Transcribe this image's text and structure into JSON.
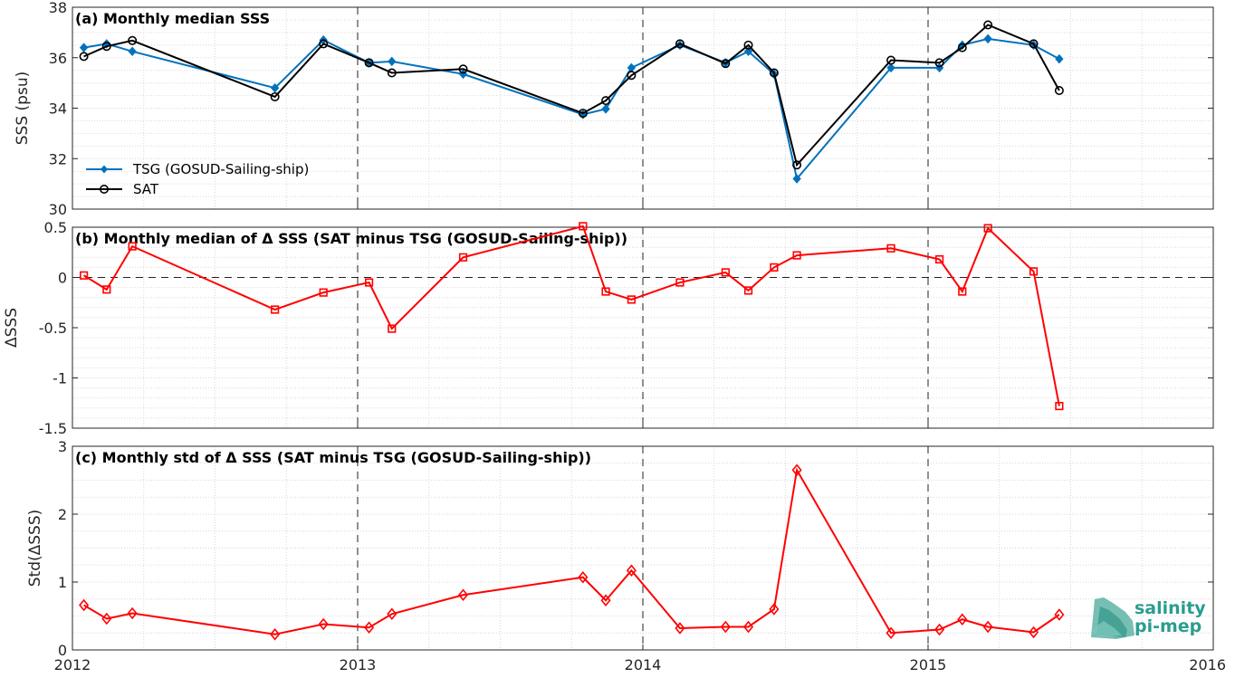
{
  "chart_data": [
    {
      "type": "line",
      "title": "(a) Monthly median SSS",
      "xlabel": "",
      "ylabel": "SSS (psu)",
      "xlim": [
        2012,
        2016
      ],
      "ylim": [
        30,
        38
      ],
      "yticks": [
        30,
        32,
        34,
        36,
        38
      ],
      "grid": true,
      "legend_position": "bottom-left",
      "x": [
        2012.04,
        2012.12,
        2012.21,
        2012.71,
        2012.88,
        2013.04,
        2013.12,
        2013.37,
        2013.79,
        2013.87,
        2013.96,
        2014.13,
        2014.29,
        2014.37,
        2014.46,
        2014.54,
        2014.87,
        2015.04,
        2015.12,
        2015.21,
        2015.37,
        2015.46
      ],
      "series": [
        {
          "name": "TSG (GOSUD-Sailing-ship)",
          "color": "#0072bd",
          "marker": "diamond-filled",
          "values": [
            36.4,
            36.55,
            36.25,
            34.8,
            36.7,
            35.8,
            35.85,
            35.35,
            33.75,
            33.97,
            35.6,
            36.5,
            35.8,
            36.25,
            35.35,
            31.2,
            35.6,
            35.6,
            36.5,
            36.75,
            36.5,
            35.95
          ]
        },
        {
          "name": "SAT",
          "color": "#000000",
          "marker": "circle-open",
          "values": [
            36.05,
            36.45,
            36.68,
            34.45,
            36.55,
            35.8,
            35.4,
            35.55,
            33.8,
            34.3,
            35.3,
            36.55,
            35.77,
            36.5,
            35.4,
            31.75,
            35.9,
            35.8,
            36.4,
            37.3,
            36.55,
            34.7
          ]
        }
      ]
    },
    {
      "type": "line",
      "title": "(b) Monthly median of Δ SSS (SAT minus TSG (GOSUD-Sailing-ship))",
      "xlabel": "",
      "ylabel": "ΔSSS",
      "xlim": [
        2012,
        2016
      ],
      "ylim": [
        -1.5,
        0.5
      ],
      "yticks": [
        -1.5,
        -1,
        -0.5,
        0,
        0.5
      ],
      "ytick_labels": [
        "-1.5",
        "-1",
        "-0.5",
        "0",
        "0.5"
      ],
      "grid": true,
      "x": [
        2012.04,
        2012.12,
        2012.21,
        2012.71,
        2012.88,
        2013.04,
        2013.12,
        2013.37,
        2013.79,
        2013.87,
        2013.96,
        2014.13,
        2014.29,
        2014.37,
        2014.46,
        2014.54,
        2014.87,
        2015.04,
        2015.12,
        2015.21,
        2015.37,
        2015.46
      ],
      "series": [
        {
          "name": "",
          "color": "#ff0000",
          "marker": "square-open",
          "values": [
            0.02,
            -0.12,
            0.31,
            -0.32,
            -0.15,
            -0.05,
            -0.51,
            0.2,
            0.51,
            -0.14,
            -0.22,
            -0.05,
            0.05,
            -0.13,
            0.1,
            0.22,
            0.29,
            0.18,
            -0.14,
            0.49,
            0.06,
            -1.28
          ]
        }
      ]
    },
    {
      "type": "line",
      "title": "(c) Monthly std of Δ SSS (SAT minus TSG (GOSUD-Sailing-ship))",
      "xlabel": "",
      "ylabel": "Std(ΔSSS)",
      "xlim": [
        2012,
        2016
      ],
      "ylim": [
        0,
        3
      ],
      "yticks": [
        0,
        1,
        2,
        3
      ],
      "xtick_labels": [
        "2012",
        "2013",
        "2014",
        "2015",
        "2016"
      ],
      "grid": true,
      "x": [
        2012.04,
        2012.12,
        2012.21,
        2012.71,
        2012.88,
        2013.04,
        2013.12,
        2013.37,
        2013.79,
        2013.87,
        2013.96,
        2014.13,
        2014.29,
        2014.37,
        2014.46,
        2014.54,
        2014.87,
        2015.04,
        2015.12,
        2015.21,
        2015.37,
        2015.46
      ],
      "series": [
        {
          "name": "",
          "color": "#ff0000",
          "marker": "diamond-open",
          "values": [
            0.66,
            0.46,
            0.54,
            0.23,
            0.38,
            0.33,
            0.53,
            0.81,
            1.07,
            0.73,
            1.17,
            0.32,
            0.34,
            0.34,
            0.6,
            2.65,
            0.25,
            0.3,
            0.45,
            0.34,
            0.26,
            0.52
          ]
        }
      ]
    }
  ],
  "logo": {
    "line1": "salinity",
    "line2": "pi-mep",
    "color": "#2a9d8f"
  }
}
